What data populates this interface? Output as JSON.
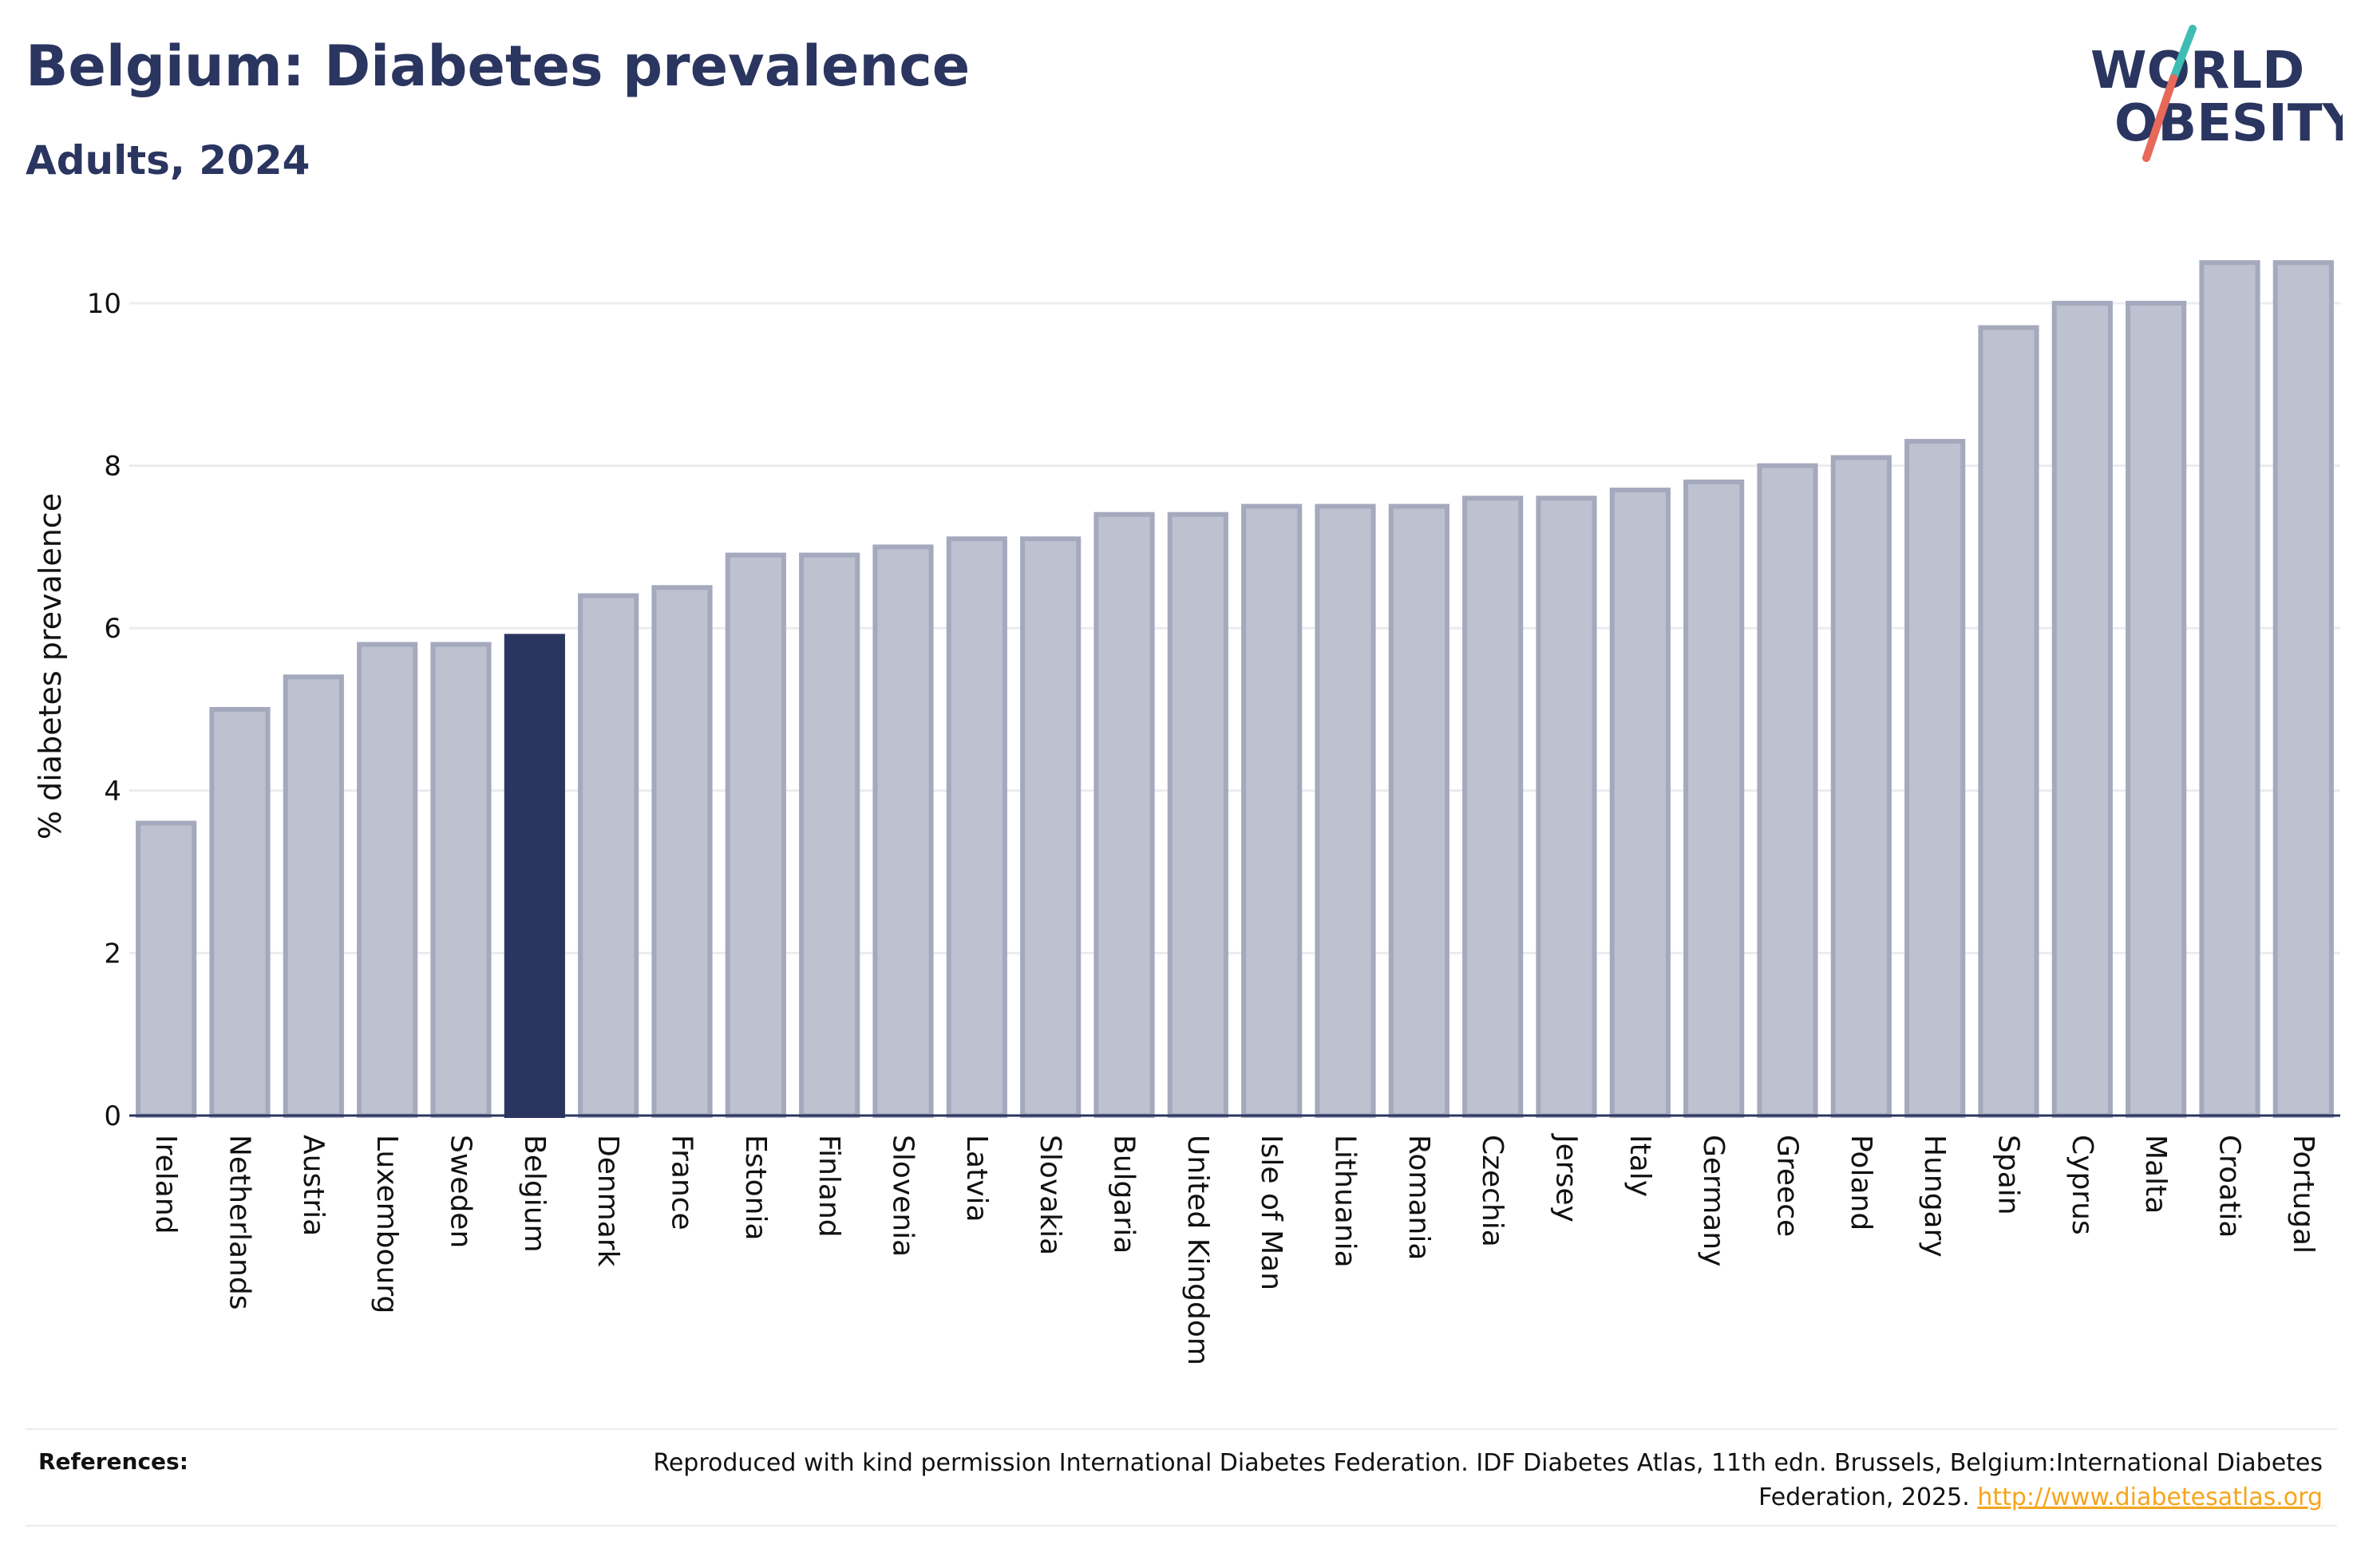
{
  "header": {
    "title": "Belgium: Diabetes prevalence",
    "subtitle": "Adults, 2024"
  },
  "logo": {
    "line1": "WORLD",
    "line2": "OBESITY",
    "slash_colors": [
      "#3fbcb3",
      "#e8685a"
    ]
  },
  "colors": {
    "bar_default": "#bec1cf",
    "bar_default_border": "#a4a9bd",
    "bar_highlight": "#2a3560",
    "axis": "#2a3560",
    "grid": "#ececf0",
    "link": "#f5a51c"
  },
  "chart_data": {
    "type": "bar",
    "ylabel": "% diabetes prevalence",
    "xlabel": "",
    "ylim": [
      0,
      11
    ],
    "yticks": [
      0,
      2,
      4,
      6,
      8,
      10
    ],
    "grid": true,
    "highlight": "Belgium",
    "categories": [
      "Ireland",
      "Netherlands",
      "Austria",
      "Luxembourg",
      "Sweden",
      "Belgium",
      "Denmark",
      "France",
      "Estonia",
      "Finland",
      "Slovenia",
      "Latvia",
      "Slovakia",
      "Bulgaria",
      "United Kingdom",
      "Isle of Man",
      "Lithuania",
      "Romania",
      "Czechia",
      "Jersey",
      "Italy",
      "Germany",
      "Greece",
      "Poland",
      "Hungary",
      "Spain",
      "Cyprus",
      "Malta",
      "Croatia",
      "Portugal"
    ],
    "values": [
      3.6,
      5.0,
      5.4,
      5.8,
      5.8,
      5.9,
      6.4,
      6.5,
      6.9,
      6.9,
      7.0,
      7.1,
      7.1,
      7.4,
      7.4,
      7.5,
      7.5,
      7.5,
      7.6,
      7.6,
      7.7,
      7.8,
      8.0,
      8.1,
      8.3,
      9.7,
      10.0,
      10.0,
      10.5,
      10.5
    ]
  },
  "references": {
    "label": "References:",
    "text": "Reproduced with kind permission International Diabetes Federation. IDF Diabetes Atlas, 11th edn. Brussels, Belgium:International Diabetes Federation, 2025.",
    "link": "http://www.diabetesatlas.org"
  }
}
